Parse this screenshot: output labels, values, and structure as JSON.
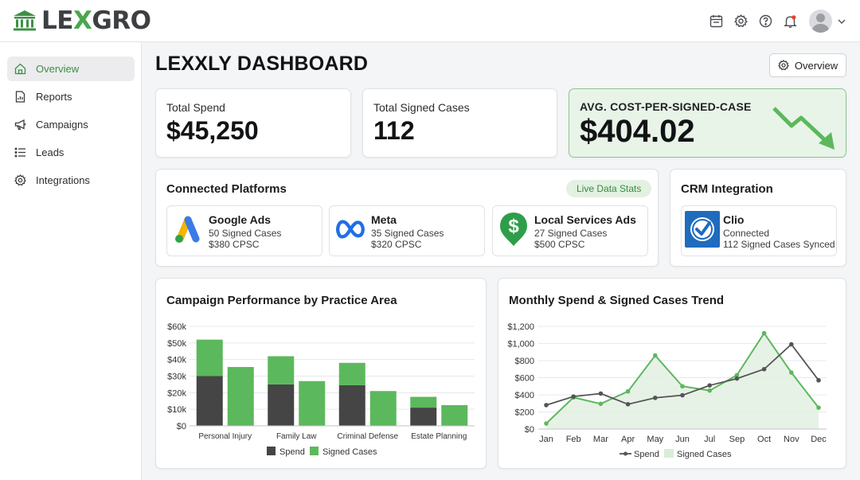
{
  "brand": {
    "name_left": "LE",
    "name_x": "X",
    "name_right": "GRO"
  },
  "header": {
    "icons": [
      "calendar-icon",
      "gear-icon",
      "help-icon",
      "bell-icon",
      "user-avatar",
      "chevron-down-icon"
    ]
  },
  "sidebar": {
    "items": [
      {
        "label": "Overview",
        "icon": "home-icon",
        "active": true
      },
      {
        "label": "Reports",
        "icon": "report-icon",
        "active": false
      },
      {
        "label": "Campaigns",
        "icon": "megaphone-icon",
        "active": false
      },
      {
        "label": "Leads",
        "icon": "list-icon",
        "active": false
      },
      {
        "label": "Integrations",
        "icon": "gear-icon",
        "active": false
      }
    ]
  },
  "main": {
    "title": "LEXXLY DASHBOARD",
    "overview_button": "Overview",
    "kpis": [
      {
        "label": "Total Spend",
        "value": "$45,250"
      },
      {
        "label": "Total Signed Cases",
        "value": "112"
      },
      {
        "label": "AVG. COST-PER-SIGNED-CASE",
        "value": "$404.02"
      }
    ],
    "connected_platforms": {
      "title": "Connected Platforms",
      "badge": "Live Data Stats",
      "platforms": [
        {
          "name": "Google Ads",
          "cases": "50 Signed Cases",
          "cpsc": "$380 CPSC"
        },
        {
          "name": "Meta",
          "cases": "35 Signed Cases",
          "cpsc": "$320 CPSC"
        },
        {
          "name": "Local Services Ads",
          "cases": "27 Signed Cases",
          "cpsc": "$500 CPSC"
        }
      ]
    },
    "crm": {
      "title": "CRM Integration",
      "name": "Clio",
      "status": "Connected",
      "synced": "112 Signed Cases Synced"
    }
  },
  "colors": {
    "accent_green": "#5cb85c",
    "dark_series": "#4a4a4a"
  },
  "chart_data": [
    {
      "type": "bar",
      "title": "Campaign Performance by Practice Area",
      "categories": [
        "Personal Injury",
        "Family Law",
        "Criminal Defense",
        "Estate Planning"
      ],
      "series": [
        {
          "name": "Spend",
          "values": [
            30000,
            25000,
            24500,
            11000
          ]
        },
        {
          "name": "Signed Cases",
          "values": [
            35500,
            27000,
            21000,
            12500
          ]
        }
      ],
      "stack_top_values": [
        22000,
        17000,
        13500,
        6500
      ],
      "ylim": [
        0,
        60000
      ],
      "yticks": [
        "$0",
        "$10k",
        "$20k",
        "$30k",
        "$40k",
        "$50k",
        "$60k"
      ],
      "legend": [
        "Spend",
        "Signed Cases"
      ]
    },
    {
      "type": "line",
      "title": "Monthly Spend & Signed Cases Trend",
      "categories": [
        "Jan",
        "Feb",
        "Mar",
        "Apr",
        "May",
        "Jun",
        "Jul",
        "Sep",
        "Oct",
        "Nov",
        "Dec"
      ],
      "series": [
        {
          "name": "Spend",
          "values": [
            280,
            380,
            415,
            290,
            365,
            395,
            510,
            590,
            700,
            990,
            570
          ]
        },
        {
          "name": "Signed Cases",
          "values": [
            65,
            370,
            295,
            440,
            860,
            500,
            450,
            630,
            1120,
            660,
            250
          ]
        }
      ],
      "ylim": [
        0,
        1200
      ],
      "yticks": [
        "$0",
        "$200",
        "$400",
        "$600",
        "$800",
        "$1,000",
        "$1,200"
      ],
      "legend": [
        "Spend",
        "Signed Cases"
      ]
    }
  ]
}
